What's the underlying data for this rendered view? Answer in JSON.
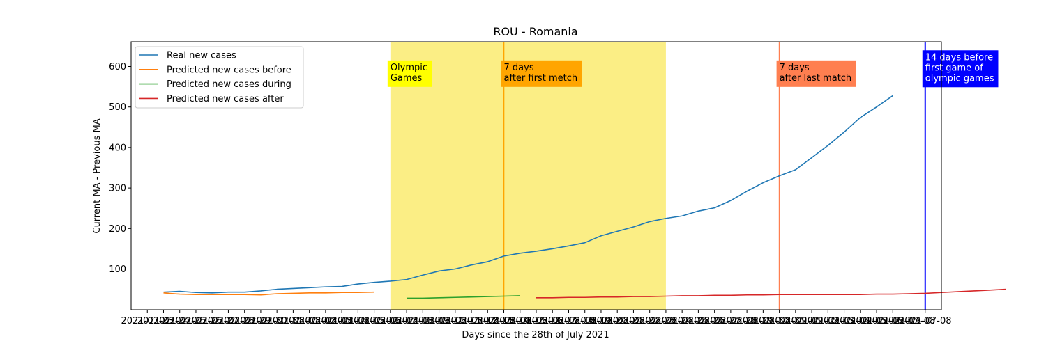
{
  "colors": {
    "real": "#1f77b4",
    "before": "#ff7f0e",
    "during": "#2ca02c",
    "after": "#d62728",
    "olympic_span": "#fbee85",
    "olympic_box": "#ffff00",
    "first_match": "#ffa500",
    "last_match": "#ff7f50",
    "fourteen_days": "#0000ff"
  },
  "chart_data": {
    "type": "line",
    "title": "ROU - Romania",
    "xlabel": "Days since the 28th of July 2021",
    "ylabel": "Current MA - Previous MA",
    "xlim": [
      -1,
      49
    ],
    "ylim": [
      -0.5,
      661
    ],
    "grid": false,
    "legend_position": "top-left",
    "yticks": [
      100,
      200,
      300,
      400,
      500,
      600
    ],
    "xtick_labels": [
      "2021-07-23",
      "2021-07-24",
      "2021-07-25",
      "2021-07-26",
      "2021-07-27",
      "2021-07-28",
      "2021-07-29",
      "2021-07-30",
      "2021-07-31",
      "2021-08-01",
      "2021-08-02",
      "2021-08-03",
      "2021-08-04",
      "2021-08-05",
      "2021-08-06",
      "2021-08-07",
      "2021-08-08",
      "2021-08-09",
      "2021-08-10",
      "2021-08-11",
      "2021-08-12",
      "2021-08-13",
      "2021-08-14",
      "2021-08-15",
      "2021-08-16",
      "2021-08-17",
      "2021-08-18",
      "2021-08-19",
      "2021-08-20",
      "2021-08-21",
      "2021-08-22",
      "2021-08-23",
      "2021-08-24",
      "2021-08-25",
      "2021-08-26",
      "2021-08-27",
      "2021-08-28",
      "2021-08-29",
      "2021-08-30",
      "2021-08-31",
      "2021-09-01",
      "2021-09-02",
      "2021-09-03",
      "2021-09-04",
      "2021-09-05",
      "2021-09-06",
      "2021-09-07",
      "2021-09-08",
      "2021-07-08"
    ],
    "series": [
      {
        "name": "Real new cases",
        "x_start": 1,
        "values": [
          43,
          45,
          42,
          41,
          43,
          43,
          46,
          50,
          52,
          54,
          56,
          57,
          63,
          67,
          70,
          74,
          85,
          95,
          100,
          110,
          118,
          132,
          139,
          144,
          150,
          157,
          165,
          182,
          193,
          204,
          217,
          225,
          231,
          243,
          251,
          269,
          292,
          313,
          330,
          345,
          375,
          405,
          438,
          474,
          500,
          528
        ]
      },
      {
        "name": "Predicted new cases before",
        "x_start": 1,
        "values": [
          41,
          38,
          37,
          37,
          37,
          37,
          36,
          39,
          40,
          41,
          41,
          42,
          42,
          43
        ]
      },
      {
        "name": "Predicted new cases during",
        "x_start": 16,
        "values": [
          28,
          28,
          29,
          30,
          31,
          32,
          33,
          34
        ]
      },
      {
        "name": "Predicted new cases after",
        "x_start": 24,
        "values": [
          29,
          29,
          30,
          30,
          31,
          31,
          32,
          32,
          33,
          34,
          34,
          35,
          35,
          36,
          36,
          37,
          37,
          37,
          37,
          37,
          37,
          38,
          38,
          39,
          40,
          42,
          44,
          46,
          48,
          50
        ]
      }
    ],
    "olympic_span": [
      15,
      32
    ],
    "annotations": [
      {
        "id": "olympic",
        "x": 15,
        "y": 590,
        "lines": [
          "Olympic",
          "Games"
        ]
      },
      {
        "id": "first_match",
        "x": 22,
        "y": 590,
        "lines": [
          "7 days",
          "after first metch"
        ]
      },
      {
        "id": "last_match",
        "x": 39,
        "y": 590,
        "lines": [
          "7 days",
          "after last match"
        ]
      },
      {
        "id": "fourteen_days",
        "x": 48,
        "y": 615,
        "lines": [
          "14 days before",
          "first game of",
          "olympic games"
        ]
      }
    ],
    "vlines": [
      {
        "id": "first_match",
        "x": 22
      },
      {
        "id": "last_match",
        "x": 39
      },
      {
        "id": "fourteen_days",
        "x": 48
      }
    ]
  }
}
